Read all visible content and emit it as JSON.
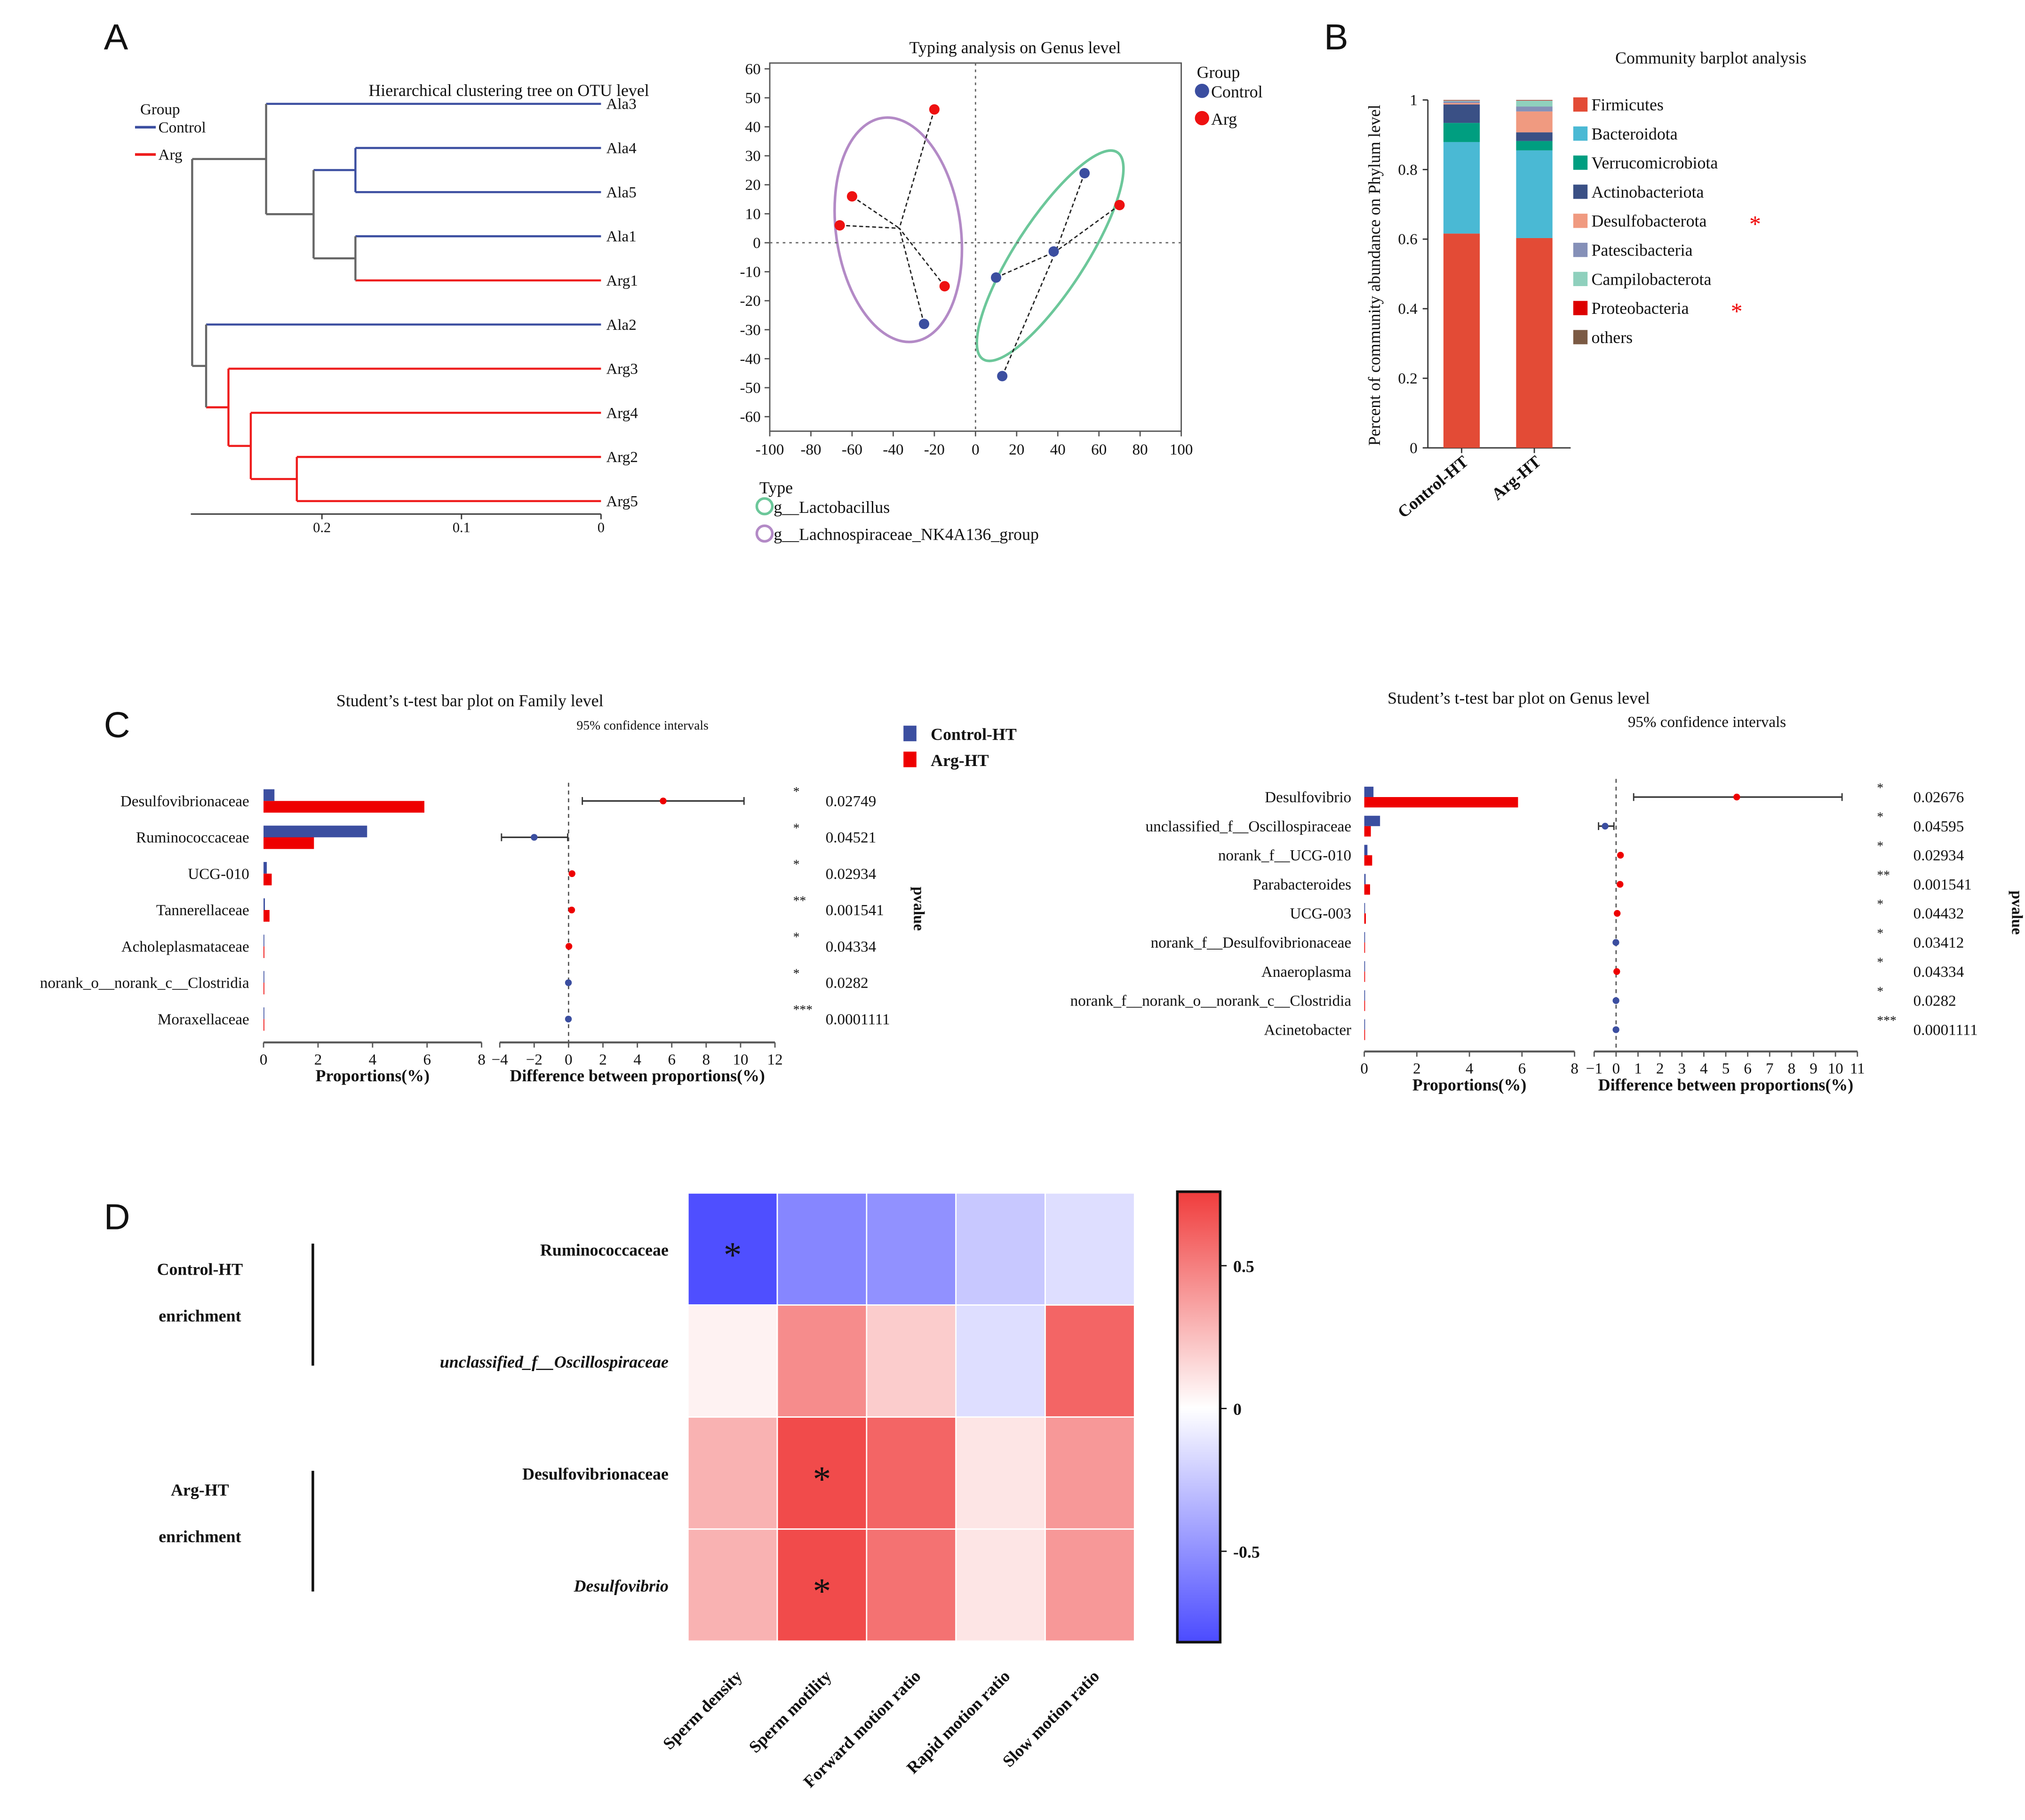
{
  "panel_labels": {
    "a": "A",
    "b": "B",
    "c": "C",
    "d": "D"
  },
  "chart_data": [
    {
      "type": "dendrogram",
      "title": "Hierarchical clustering tree on OTU level",
      "legend_title": "Group",
      "groups": [
        {
          "name": "Control",
          "prefix": "Ala",
          "color": "#3b4ea0"
        },
        {
          "name": "Arg",
          "prefix": "Arg",
          "color": "#ee1c1c"
        }
      ],
      "mixed_color": "#666666",
      "leaves": [
        "Ala3",
        "Ala4",
        "Ala5",
        "Ala1",
        "Arg1",
        "Ala2",
        "Arg3",
        "Arg4",
        "Arg2",
        "Arg5"
      ],
      "tree": {
        "h": 0.293,
        "c": [
          {
            "h": 0.24,
            "c": [
              "Ala3",
              {
                "h": 0.206,
                "c": [
                  {
                    "h": 0.176,
                    "c": [
                      "Ala4",
                      "Ala5"
                    ]
                  },
                  {
                    "h": 0.176,
                    "c": [
                      "Ala1",
                      "Arg1"
                    ]
                  }
                ]
              }
            ]
          },
          {
            "h": 0.283,
            "c": [
              "Ala2",
              {
                "h": 0.267,
                "c": [
                  "Arg3",
                  {
                    "h": 0.251,
                    "c": [
                      "Arg4",
                      {
                        "h": 0.218,
                        "c": [
                          "Arg2",
                          "Arg5"
                        ]
                      }
                    ]
                  }
                ]
              }
            ]
          }
        ]
      },
      "xticks": [
        "0.2",
        "0.1",
        "0"
      ]
    },
    {
      "type": "scatter",
      "title": "Typing analysis on Genus level",
      "xlim": [
        -100,
        100
      ],
      "ylim": [
        -65,
        62
      ],
      "xticks": [
        -100,
        -80,
        -60,
        -40,
        -20,
        0,
        20,
        40,
        60,
        80,
        100
      ],
      "yticks": [
        60,
        50,
        40,
        30,
        20,
        10,
        0,
        -10,
        -20,
        -30,
        -40,
        -50,
        -60
      ],
      "legend_title": "Group",
      "groups": [
        {
          "name": "Control",
          "color": "#3b4ea0"
        },
        {
          "name": "Arg",
          "color": "#ee1111"
        }
      ],
      "type_legend_title": "Type",
      "types": [
        {
          "name": "g__Lactobacillus",
          "color": "#6cc79a",
          "centroid": [
            39,
            -3
          ]
        },
        {
          "name": "g__Lachnospiraceae_NK4A136_group",
          "color": "#b38ac6",
          "centroid": [
            -37,
            5
          ]
        }
      ],
      "points": [
        {
          "group": 0,
          "x": -25,
          "y": -28,
          "type": 1
        },
        {
          "group": 0,
          "x": 10,
          "y": -12,
          "type": 0
        },
        {
          "group": 0,
          "x": 38,
          "y": -3,
          "type": 0
        },
        {
          "group": 0,
          "x": 53,
          "y": 24,
          "type": 0
        },
        {
          "group": 0,
          "x": 13,
          "y": -46,
          "type": 0
        },
        {
          "group": 1,
          "x": -20,
          "y": 46,
          "type": 1
        },
        {
          "group": 1,
          "x": -60,
          "y": 16,
          "type": 1
        },
        {
          "group": 1,
          "x": -66,
          "y": 6,
          "type": 1
        },
        {
          "group": 1,
          "x": -15,
          "y": -15,
          "type": 1
        },
        {
          "group": 1,
          "x": 70,
          "y": 13,
          "type": 0
        }
      ]
    },
    {
      "type": "bar",
      "stacked": true,
      "title": "Community barplot analysis",
      "ylabel": "Percent of community abundance on Phylum level",
      "categories": [
        "Control-HT",
        "Arg-HT"
      ],
      "ylim": [
        0,
        1
      ],
      "yticks": [
        {
          "v": 0,
          "label": "0"
        },
        {
          "v": 0.2,
          "label": "0.2"
        },
        {
          "v": 0.4,
          "label": "0.4"
        },
        {
          "v": 0.6,
          "label": "0.6"
        },
        {
          "v": 0.8,
          "label": "0.8"
        },
        {
          "v": 1,
          "label": "1"
        }
      ],
      "series": [
        {
          "name": "Firmicutes",
          "color": "#e34b36",
          "values": [
            0.616,
            0.603
          ],
          "mark": ""
        },
        {
          "name": "Bacteroidota",
          "color": "#4ab9d4",
          "values": [
            0.263,
            0.252
          ],
          "mark": ""
        },
        {
          "name": "Verrucomicrobiota",
          "color": "#009e80",
          "values": [
            0.055,
            0.027
          ],
          "mark": ""
        },
        {
          "name": "Actinobacteriota",
          "color": "#3a5085",
          "values": [
            0.053,
            0.025
          ],
          "mark": ""
        },
        {
          "name": "Desulfobacterota",
          "color": "#f09a80",
          "values": [
            0.004,
            0.06
          ],
          "mark": "*"
        },
        {
          "name": "Patescibacteria",
          "color": "#8590b8",
          "values": [
            0.005,
            0.014
          ],
          "mark": ""
        },
        {
          "name": "Campilobacterota",
          "color": "#8fd0bd",
          "values": [
            0.002,
            0.017
          ],
          "mark": ""
        },
        {
          "name": "Proteobacteria",
          "color": "#dd0000",
          "values": [
            0.001,
            0.001
          ],
          "mark": "*"
        },
        {
          "name": "others",
          "color": "#7b5a44",
          "values": [
            0.001,
            0.001
          ],
          "mark": ""
        }
      ]
    },
    {
      "type": "bar",
      "title": "Student’s t-test bar plot on Family level",
      "ci_label": "95% confidence intervals",
      "xlabel_left": "Proportions(%)",
      "xlabel_right": "Difference between proportions(%)",
      "pvalue_label": "pvalue",
      "legend": [
        {
          "name": "Control-HT",
          "color": "#3b4ea0"
        },
        {
          "name": "Arg-HT",
          "color": "#ee0000"
        }
      ],
      "prop_ticks": [
        0,
        2,
        4,
        6,
        8
      ],
      "diff_ticks": [
        -4,
        -2,
        0,
        2,
        4,
        6,
        8,
        10,
        12
      ],
      "rows": [
        {
          "name": "Desulfovibrionaceae",
          "control": 0.4,
          "arg": 5.9,
          "diff": 5.5,
          "ci": [
            0.8,
            10.2
          ],
          "sig": "*",
          "p": "0.02749"
        },
        {
          "name": "Ruminococcaceae",
          "control": 3.8,
          "arg": 1.85,
          "diff": -2.0,
          "ci": [
            -3.9,
            -0.05
          ],
          "sig": "*",
          "p": "0.04521"
        },
        {
          "name": "UCG-010",
          "control": 0.12,
          "arg": 0.3,
          "diff": 0.2,
          "ci": [
            0.05,
            0.35
          ],
          "sig": "*",
          "p": "0.02934"
        },
        {
          "name": "Tannerellaceae",
          "control": 0.05,
          "arg": 0.22,
          "diff": 0.18,
          "ci": [
            0.05,
            0.3
          ],
          "sig": "**",
          "p": "0.001541"
        },
        {
          "name": "Acholeplasmataceae",
          "control": 0.02,
          "arg": 0.03,
          "diff": 0.02,
          "ci": [
            0.0,
            0.04
          ],
          "sig": "*",
          "p": "0.04334"
        },
        {
          "name": "norank_o__norank_c__Clostridia",
          "control": 0.01,
          "arg": 0.005,
          "diff": -0.01,
          "ci": [
            -0.02,
            0.0
          ],
          "sig": "*",
          "p": "0.0282"
        },
        {
          "name": "Moraxellaceae",
          "control": 0.01,
          "arg": 0.0,
          "diff": -0.01,
          "ci": [
            -0.02,
            0.0
          ],
          "sig": "***",
          "p": "0.0001111"
        }
      ]
    },
    {
      "type": "bar",
      "title": "Student’s t-test bar plot on Genus level",
      "ci_label": "95% confidence intervals",
      "xlabel_left": "Proportions(%)",
      "xlabel_right": "Difference between proportions(%)",
      "pvalue_label": "pvalue",
      "prop_ticks": [
        0,
        2,
        4,
        6,
        8
      ],
      "diff_ticks": [
        -1,
        0,
        1,
        2,
        3,
        4,
        5,
        6,
        7,
        8,
        9,
        10,
        11
      ],
      "rows": [
        {
          "name": "Desulfovibrio",
          "control": 0.35,
          "arg": 5.85,
          "diff": 5.5,
          "ci": [
            0.8,
            10.3
          ],
          "sig": "*",
          "p": "0.02676"
        },
        {
          "name": "unclassified_f__Oscillospiraceae",
          "control": 0.6,
          "arg": 0.25,
          "diff": -0.5,
          "ci": [
            -0.8,
            -0.1
          ],
          "sig": "*",
          "p": "0.04595"
        },
        {
          "name": "norank_f__UCG-010",
          "control": 0.12,
          "arg": 0.3,
          "diff": 0.2,
          "ci": [
            0.05,
            0.35
          ],
          "sig": "*",
          "p": "0.02934"
        },
        {
          "name": "Parabacteroides",
          "control": 0.05,
          "arg": 0.22,
          "diff": 0.18,
          "ci": [
            0.05,
            0.3
          ],
          "sig": "**",
          "p": "0.001541"
        },
        {
          "name": "UCG-003",
          "control": 0.01,
          "arg": 0.06,
          "diff": 0.05,
          "ci": [
            0.0,
            0.1
          ],
          "sig": "*",
          "p": "0.04432"
        },
        {
          "name": "norank_f__Desulfovibrionaceae",
          "control": 0.01,
          "arg": 0.005,
          "diff": -0.01,
          "ci": [
            -0.02,
            0.0
          ],
          "sig": "*",
          "p": "0.03412"
        },
        {
          "name": "Anaeroplasma",
          "control": 0.005,
          "arg": 0.03,
          "diff": 0.03,
          "ci": [
            0.0,
            0.05
          ],
          "sig": "*",
          "p": "0.04334"
        },
        {
          "name": "norank_f__norank_o__norank_c__Clostridia",
          "control": 0.01,
          "arg": 0.0,
          "diff": -0.005,
          "ci": [
            -0.01,
            0.0
          ],
          "sig": "*",
          "p": "0.0282"
        },
        {
          "name": "Acinetobacter",
          "control": 0.01,
          "arg": 0.0,
          "diff": -0.005,
          "ci": [
            -0.01,
            0.0
          ],
          "sig": "***",
          "p": "0.0001111"
        }
      ]
    },
    {
      "type": "heatmap",
      "columns": [
        "Sperm density",
        "Sperm motility",
        "Forward motion  ratio",
        "Rapid motion ratio",
        "Slow motion ratio"
      ],
      "rows": [
        {
          "name": "Ruminococcaceae",
          "italic": false,
          "values": [
            -0.8,
            -0.55,
            -0.5,
            -0.25,
            -0.15
          ],
          "sig": [
            "*",
            "",
            "",
            "",
            ""
          ]
        },
        {
          "name": "unclassified_f__Oscillospiraceae",
          "italic": true,
          "values": [
            0.05,
            0.45,
            0.2,
            -0.15,
            0.6
          ],
          "sig": [
            "",
            "",
            "",
            "",
            ""
          ]
        },
        {
          "name": "Desulfovibrionaceae",
          "italic": false,
          "values": [
            0.3,
            0.7,
            0.6,
            0.1,
            0.4
          ],
          "sig": [
            "",
            "*",
            "",
            "",
            ""
          ]
        },
        {
          "name": "Desulfovibrio",
          "italic": true,
          "values": [
            0.3,
            0.7,
            0.55,
            0.1,
            0.4
          ],
          "sig": [
            "",
            "*",
            "",
            "",
            ""
          ]
        }
      ],
      "groups": [
        {
          "line1": "Control-HT",
          "line2": "enrichment"
        },
        {
          "line1": "Arg-HT",
          "line2": "enrichment"
        }
      ],
      "colorbar": {
        "min": -0.82,
        "max": 0.76,
        "low_color": "#4b4bff",
        "mid_color": "#ffffff",
        "high_color": "#f03c3c",
        "ticks": [
          {
            "v": 0.5,
            "label": "0.5"
          },
          {
            "v": 0,
            "label": "0"
          },
          {
            "v": -0.5,
            "label": "-0.5"
          }
        ]
      }
    }
  ]
}
